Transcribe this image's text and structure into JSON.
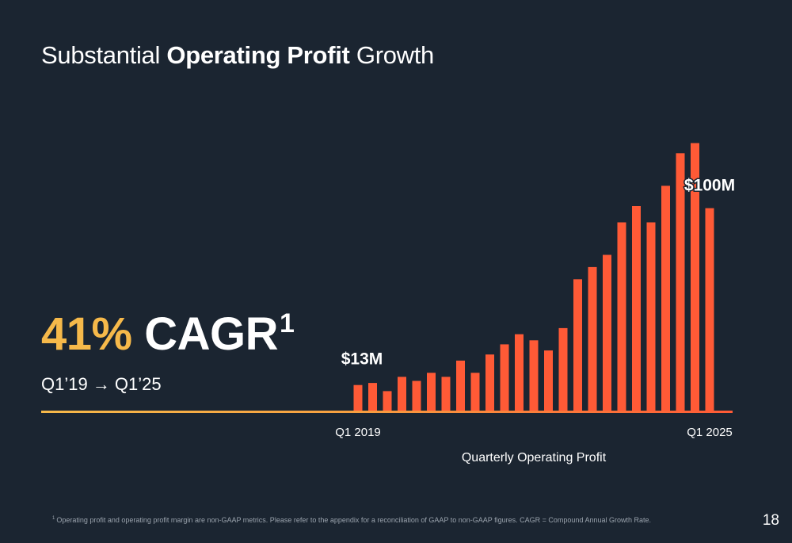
{
  "slide": {
    "title_pre": "Substantial ",
    "title_bold": "Operating Profit",
    "title_post": " Growth",
    "cagr_value": "41%",
    "cagr_label": "CAGR",
    "cagr_footnote_mark": "1",
    "period": "Q1’19 → Q1’25",
    "footnote_mark": "1",
    "footnote": "Operating profit and operating profit margin are non-GAAP metrics. Please refer to the appendix for a reconciliation of GAAP to non-GAAP figures. CAGR = Compound Annual Growth Rate.",
    "page_number": "18"
  },
  "colors": {
    "background": "#1b2531",
    "bar": "#ff5a36",
    "accent": "#f6b94a"
  },
  "chart_data": {
    "type": "bar",
    "xlabel": "Quarterly Operating Profit",
    "x_tick_labels": {
      "first": "Q1 2019",
      "last": "Q1 2025"
    },
    "values": [
      13,
      14,
      10,
      17,
      15,
      19,
      17,
      25,
      19,
      28,
      33,
      38,
      35,
      30,
      41,
      65,
      71,
      77,
      93,
      101,
      93,
      111,
      127,
      132,
      100
    ],
    "data_labels": [
      {
        "index": 0,
        "text": "$13M"
      },
      {
        "index": 24,
        "text": "$100M"
      }
    ],
    "ylim": [
      0,
      140
    ],
    "grid": false,
    "legend": "none"
  }
}
